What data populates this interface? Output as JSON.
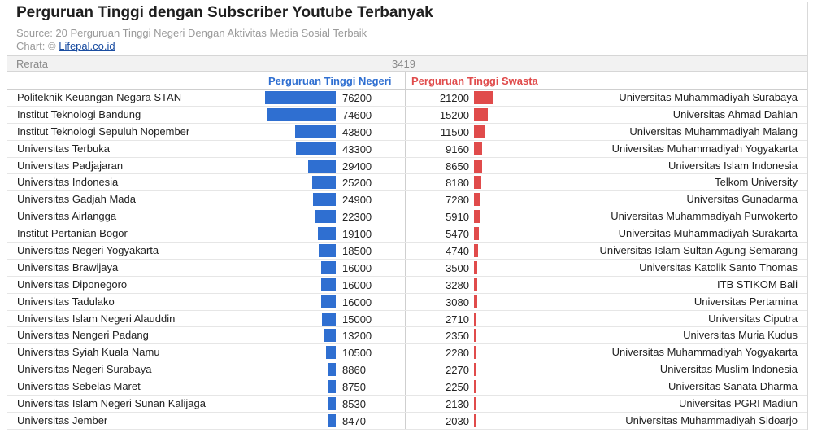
{
  "title": "Perguruan Tinggi dengan Subscriber Youtube Terbanyak",
  "source": "Source: 20 Perguruan Tinggi Negeri Dengan Aktivitas Media Sosial Terbaik",
  "credit_prefix": "Chart: ©",
  "credit_link": "Lifepal.co.id",
  "colors": {
    "negeri": "#2f6fd1",
    "swasta": "#e04b4b"
  },
  "chart_data": {
    "type": "bar",
    "title": "Perguruan Tinggi dengan Subscriber Youtube Terbanyak",
    "average_label": "Rerata",
    "average_value": 3419,
    "series": [
      {
        "name": "Perguruan Tinggi Negeri",
        "categories": [
          "Politeknik Keuangan Negara STAN",
          "Institut Teknologi Bandung",
          "Institut Teknologi Sepuluh Nopember",
          "Universitas Terbuka",
          "Universitas Padjajaran",
          "Universitas Indonesia",
          "Universitas Gadjah Mada",
          "Universitas Airlangga",
          "Institut Pertanian Bogor",
          "Universitas Negeri Yogyakarta",
          "Universitas Brawijaya",
          "Universitas Diponegoro",
          "Universitas Tadulako",
          "Universitas Islam Negeri Alauddin",
          "Universitas Nengeri Padang",
          "Universitas Syiah Kuala Namu",
          "Universitas Negeri Surabaya",
          "Universitas Sebelas Maret",
          "Universitas Islam Negeri Sunan Kalijaga",
          "Universitas Jember"
        ],
        "values": [
          76200,
          74600,
          43800,
          43300,
          29400,
          25200,
          24900,
          22300,
          19100,
          18500,
          16000,
          16000,
          16000,
          15000,
          13200,
          10500,
          8860,
          8750,
          8530,
          8470
        ]
      },
      {
        "name": "Perguruan Tinggi Swasta",
        "categories": [
          "Universitas Muhammadiyah Surabaya",
          "Universitas Ahmad Dahlan",
          "Universitas Muhammadiyah Malang",
          "Universitas Muhammadiyah Yogyakarta",
          "Universitas Islam Indonesia",
          "Telkom University",
          "Universitas Gunadarma",
          "Universitas Muhammadiyah Purwokerto",
          "Universitas Muhammadiyah Surakarta",
          "Universitas Islam Sultan Agung Semarang",
          "Universitas Katolik Santo Thomas",
          "ITB STIKOM Bali",
          "Universitas Pertamina",
          "Universitas Ciputra",
          "Universitas Muria Kudus",
          "Universitas Muhammadiyah Yogyakarta",
          "Universitas Muslim Indonesia",
          "Universitas Sanata Dharma",
          "Universitas PGRI Madiun",
          "Universitas Muhammadiyah Sidoarjo"
        ],
        "values": [
          21200,
          15200,
          11500,
          9160,
          8650,
          8180,
          7280,
          5910,
          5470,
          4740,
          3500,
          3280,
          3080,
          2710,
          2350,
          2280,
          2270,
          2250,
          2130,
          2030
        ]
      }
    ]
  }
}
